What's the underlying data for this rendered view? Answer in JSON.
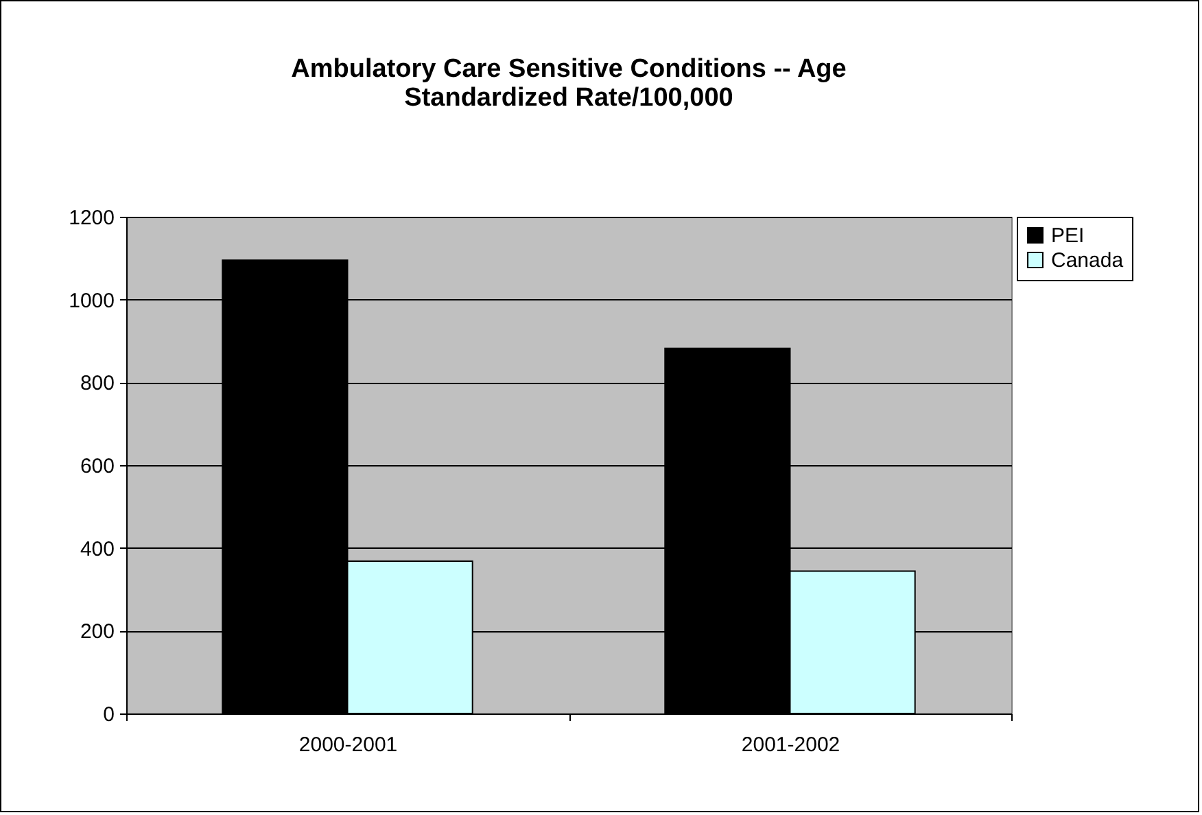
{
  "chart_data": {
    "type": "bar",
    "title": "Ambulatory Care Sensitive Conditions -- Age Standardized Rate/100,000",
    "categories": [
      "2000-2001",
      "2001-2002"
    ],
    "series": [
      {
        "name": "PEI",
        "color": "#000000",
        "values": [
          1095,
          882
        ]
      },
      {
        "name": "Canada",
        "color": "#ccffff",
        "values": [
          368,
          344
        ]
      }
    ],
    "ylim": [
      0,
      1200
    ],
    "yticks": [
      0,
      200,
      400,
      600,
      800,
      1000,
      1200
    ],
    "grid": "y",
    "legend": "right"
  }
}
